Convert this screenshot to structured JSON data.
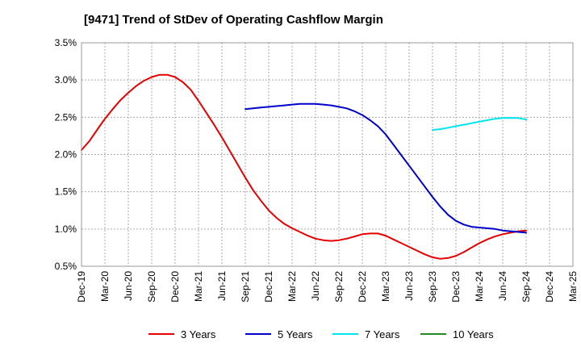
{
  "chart_data": {
    "type": "line",
    "title": "[9471]  Trend of StDev of Operating Cashflow Margin",
    "xlabel": "",
    "ylabel": "",
    "x_ticks": [
      "Dec-19",
      "Mar-20",
      "Jun-20",
      "Sep-20",
      "Dec-20",
      "Mar-21",
      "Jun-21",
      "Sep-21",
      "Dec-21",
      "Mar-22",
      "Jun-22",
      "Sep-22",
      "Dec-22",
      "Mar-23",
      "Jun-23",
      "Sep-23",
      "Dec-23",
      "Mar-24",
      "Jun-24",
      "Sep-24",
      "Dec-24",
      "Mar-25"
    ],
    "y_ticks": [
      "0.5%",
      "1.0%",
      "1.5%",
      "2.0%",
      "2.5%",
      "3.0%",
      "3.5%"
    ],
    "ylim": [
      0.5,
      3.5
    ],
    "y_unit": "%",
    "grid": true,
    "legend_position": "bottom",
    "series": [
      {
        "name": "3 Years",
        "color": "#e60000",
        "x": [
          "Dec-19",
          "Jan-20",
          "Feb-20",
          "Mar-20",
          "Apr-20",
          "May-20",
          "Jun-20",
          "Jul-20",
          "Aug-20",
          "Sep-20",
          "Oct-20",
          "Nov-20",
          "Dec-20",
          "Jan-21",
          "Feb-21",
          "Mar-21",
          "Apr-21",
          "May-21",
          "Jun-21",
          "Jul-21",
          "Aug-21",
          "Sep-21",
          "Oct-21",
          "Nov-21",
          "Dec-21",
          "Jan-22",
          "Feb-22",
          "Mar-22",
          "Apr-22",
          "May-22",
          "Jun-22",
          "Jul-22",
          "Aug-22",
          "Sep-22",
          "Oct-22",
          "Nov-22",
          "Dec-22",
          "Jan-23",
          "Feb-23",
          "Mar-23",
          "Apr-23",
          "May-23",
          "Jun-23",
          "Jul-23",
          "Aug-23",
          "Sep-23",
          "Oct-23",
          "Nov-23",
          "Dec-23",
          "Jan-24",
          "Feb-24",
          "Mar-24",
          "Apr-24",
          "May-24",
          "Jun-24",
          "Jul-24",
          "Aug-24",
          "Sep-24"
        ],
        "values": [
          2.06,
          2.18,
          2.33,
          2.48,
          2.61,
          2.73,
          2.83,
          2.92,
          2.99,
          3.04,
          3.07,
          3.07,
          3.04,
          2.97,
          2.87,
          2.72,
          2.56,
          2.4,
          2.23,
          2.05,
          1.87,
          1.69,
          1.52,
          1.38,
          1.25,
          1.15,
          1.07,
          1.01,
          0.96,
          0.91,
          0.87,
          0.85,
          0.84,
          0.85,
          0.87,
          0.9,
          0.93,
          0.94,
          0.94,
          0.91,
          0.86,
          0.81,
          0.76,
          0.71,
          0.66,
          0.62,
          0.6,
          0.61,
          0.64,
          0.69,
          0.75,
          0.81,
          0.86,
          0.9,
          0.93,
          0.95,
          0.97,
          0.98
        ]
      },
      {
        "name": "5 Years",
        "color": "#0000cc",
        "x": [
          "Sep-21",
          "Oct-21",
          "Nov-21",
          "Dec-21",
          "Jan-22",
          "Feb-22",
          "Mar-22",
          "Apr-22",
          "May-22",
          "Jun-22",
          "Jul-22",
          "Aug-22",
          "Sep-22",
          "Oct-22",
          "Nov-22",
          "Dec-22",
          "Jan-23",
          "Feb-23",
          "Mar-23",
          "Apr-23",
          "May-23",
          "Jun-23",
          "Jul-23",
          "Aug-23",
          "Sep-23",
          "Oct-23",
          "Nov-23",
          "Dec-23",
          "Jan-24",
          "Feb-24",
          "Mar-24",
          "Apr-24",
          "May-24",
          "Jun-24",
          "Jul-24",
          "Aug-24",
          "Sep-24"
        ],
        "values": [
          2.61,
          2.62,
          2.63,
          2.64,
          2.65,
          2.66,
          2.67,
          2.68,
          2.68,
          2.68,
          2.67,
          2.66,
          2.64,
          2.62,
          2.58,
          2.53,
          2.46,
          2.38,
          2.27,
          2.13,
          1.99,
          1.85,
          1.71,
          1.57,
          1.43,
          1.3,
          1.19,
          1.11,
          1.06,
          1.03,
          1.02,
          1.01,
          1.0,
          0.98,
          0.97,
          0.96,
          0.95
        ]
      },
      {
        "name": "7 Years",
        "color": "#00e5ee",
        "x": [
          "Sep-23",
          "Oct-23",
          "Nov-23",
          "Dec-23",
          "Jan-24",
          "Feb-24",
          "Mar-24",
          "Apr-24",
          "May-24",
          "Jun-24",
          "Jul-24",
          "Aug-24",
          "Sep-24"
        ],
        "values": [
          2.33,
          2.34,
          2.36,
          2.38,
          2.4,
          2.42,
          2.44,
          2.46,
          2.48,
          2.49,
          2.49,
          2.49,
          2.47
        ]
      },
      {
        "name": "10 Years",
        "color": "#228b22",
        "x": [],
        "values": []
      }
    ]
  }
}
